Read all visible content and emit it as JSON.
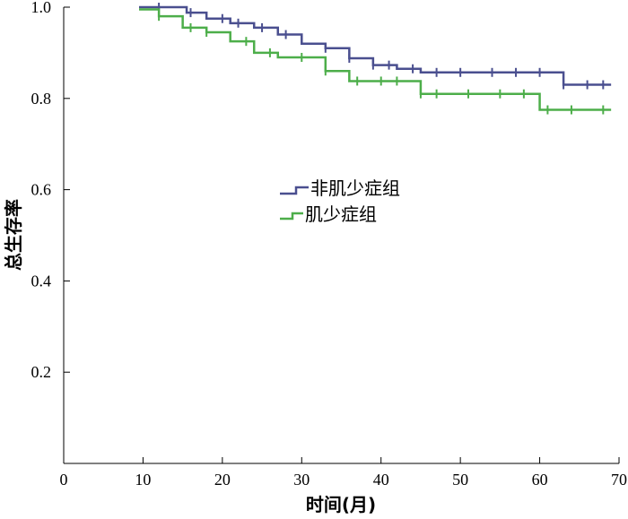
{
  "chart_data": {
    "type": "line",
    "title": "",
    "xlabel": "时间(月)",
    "ylabel": "总生存率",
    "xlim": [
      0,
      70
    ],
    "ylim": [
      0,
      1.0
    ],
    "xticks": [
      "0",
      "10",
      "20",
      "30",
      "40",
      "50",
      "60",
      "70"
    ],
    "yticks": [
      "0.2",
      "0.4",
      "0.6",
      "0.8",
      "1.0"
    ],
    "grid": false,
    "legend_position": "center-left",
    "series": [
      {
        "name": "非肌少症组",
        "color": "#4a4f8f",
        "steps": [
          {
            "x": 9.5,
            "y": 1.0
          },
          {
            "x": 15.5,
            "y": 0.988
          },
          {
            "x": 18,
            "y": 0.975
          },
          {
            "x": 21,
            "y": 0.965
          },
          {
            "x": 24,
            "y": 0.955
          },
          {
            "x": 27,
            "y": 0.94
          },
          {
            "x": 30,
            "y": 0.92
          },
          {
            "x": 33,
            "y": 0.91
          },
          {
            "x": 36,
            "y": 0.888
          },
          {
            "x": 39,
            "y": 0.873
          },
          {
            "x": 42,
            "y": 0.865
          },
          {
            "x": 45,
            "y": 0.857
          },
          {
            "x": 63,
            "y": 0.83
          },
          {
            "x": 69,
            "y": 0.83
          }
        ],
        "censored": [
          12,
          16,
          20,
          22,
          25,
          28,
          33,
          36,
          39,
          41,
          44,
          47,
          50,
          54,
          57,
          60,
          63,
          66,
          68
        ]
      },
      {
        "name": "肌少症组",
        "color": "#4dae4a",
        "steps": [
          {
            "x": 9.5,
            "y": 0.995
          },
          {
            "x": 12,
            "y": 0.98
          },
          {
            "x": 15,
            "y": 0.955
          },
          {
            "x": 18,
            "y": 0.945
          },
          {
            "x": 21,
            "y": 0.925
          },
          {
            "x": 24,
            "y": 0.9
          },
          {
            "x": 27,
            "y": 0.89
          },
          {
            "x": 33,
            "y": 0.86
          },
          {
            "x": 36,
            "y": 0.838
          },
          {
            "x": 45,
            "y": 0.81
          },
          {
            "x": 60,
            "y": 0.775
          },
          {
            "x": 69,
            "y": 0.775
          }
        ],
        "censored": [
          12,
          16,
          18,
          23,
          26,
          30,
          33,
          37,
          40,
          42,
          45,
          47,
          51,
          55,
          58,
          61,
          64,
          68
        ]
      }
    ]
  }
}
